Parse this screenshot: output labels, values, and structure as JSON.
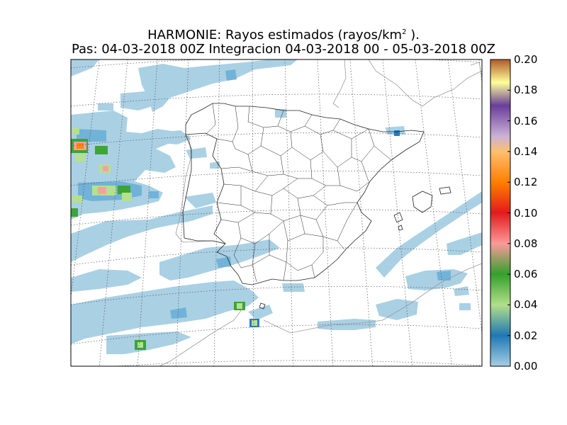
{
  "title": {
    "line1_prefix": "HARMONIE: Rayos estimados  (rayos/km",
    "line1_sup": "2",
    "line1_suffix": " ).",
    "line2": "Pas: 04-03-2018 00Z Integracion 04-03-2018 00 - 05-03-2018 00Z"
  },
  "colorbar": {
    "ticks": [
      "0.00",
      "0.02",
      "0.04",
      "0.06",
      "0.08",
      "0.10",
      "0.12",
      "0.14",
      "0.16",
      "0.18",
      "0.20"
    ],
    "min": 0.0,
    "max": 0.2,
    "stops": [
      {
        "v": 0.0,
        "c": "#a6cee3"
      },
      {
        "v": 0.02,
        "c": "#1f78b4"
      },
      {
        "v": 0.04,
        "c": "#b2df8a"
      },
      {
        "v": 0.06,
        "c": "#33a02c"
      },
      {
        "v": 0.08,
        "c": "#fb9a99"
      },
      {
        "v": 0.1,
        "c": "#e31a1c"
      },
      {
        "v": 0.12,
        "c": "#ff7f00"
      },
      {
        "v": 0.14,
        "c": "#fdbf6f"
      },
      {
        "v": 0.15,
        "c": "#cab2d6"
      },
      {
        "v": 0.17,
        "c": "#6a3d9a"
      },
      {
        "v": 0.185,
        "c": "#ffff99"
      },
      {
        "v": 0.2,
        "c": "#b15928"
      }
    ]
  },
  "colors": {
    "light_blue": "#a6cee3",
    "mid_blue": "#6aaed6",
    "dark_blue": "#1f78b4",
    "light_green": "#b2df8a",
    "green": "#33a02c",
    "pink": "#fb9a99",
    "orange": "#ff7f00",
    "grid": "#555555",
    "coast": "#999999",
    "border": "#222222"
  }
}
